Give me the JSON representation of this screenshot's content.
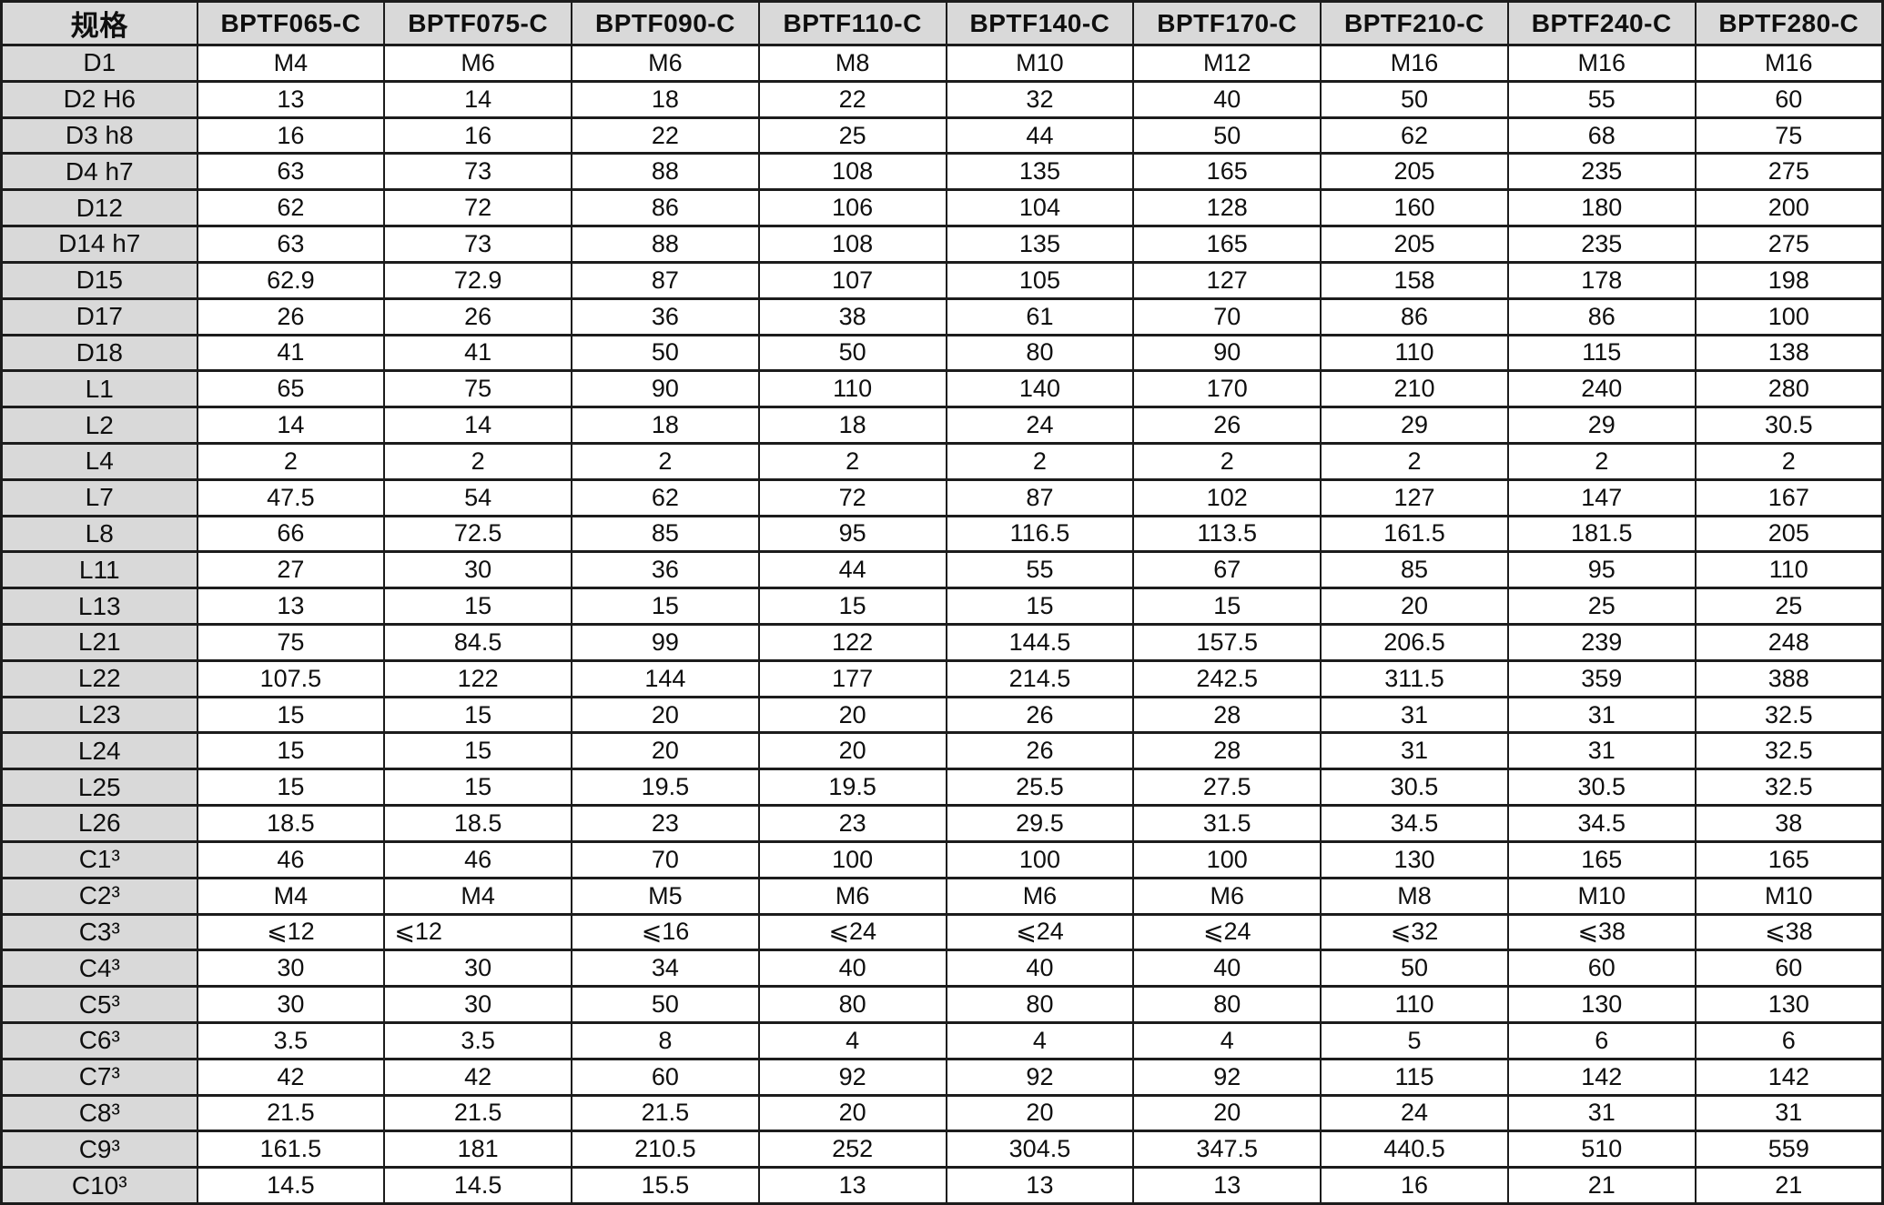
{
  "colors": {
    "border": "#1c1c1c",
    "header_background": "#d9d9d9",
    "row_label_background": "#d9d9d9",
    "cell_background": "#ffffff",
    "text": "#0f0f0f"
  },
  "table": {
    "corner_header": "规格",
    "columns": [
      "BPTF065-C",
      "BPTF075-C",
      "BPTF090-C",
      "BPTF110-C",
      "BPTF140-C",
      "BPTF170-C",
      "BPTF210-C",
      "BPTF240-C",
      "BPTF280-C"
    ],
    "rows": [
      {
        "label": "D1",
        "values": [
          "M4",
          "M6",
          "M6",
          "M8",
          "M10",
          "M12",
          "M16",
          "M16",
          "M16"
        ]
      },
      {
        "label": "D2 H6",
        "values": [
          "13",
          "14",
          "18",
          "22",
          "32",
          "40",
          "50",
          "55",
          "60"
        ]
      },
      {
        "label": "D3 h8",
        "values": [
          "16",
          "16",
          "22",
          "25",
          "44",
          "50",
          "62",
          "68",
          "75"
        ]
      },
      {
        "label": "D4 h7",
        "values": [
          "63",
          "73",
          "88",
          "108",
          "135",
          "165",
          "205",
          "235",
          "275"
        ]
      },
      {
        "label": "D12",
        "values": [
          "62",
          "72",
          "86",
          "106",
          "104",
          "128",
          "160",
          "180",
          "200"
        ]
      },
      {
        "label": "D14 h7",
        "values": [
          "63",
          "73",
          "88",
          "108",
          "135",
          "165",
          "205",
          "235",
          "275"
        ]
      },
      {
        "label": "D15",
        "values": [
          "62.9",
          "72.9",
          "87",
          "107",
          "105",
          "127",
          "158",
          "178",
          "198"
        ]
      },
      {
        "label": "D17",
        "values": [
          "26",
          "26",
          "36",
          "38",
          "61",
          "70",
          "86",
          "86",
          "100"
        ]
      },
      {
        "label": "D18",
        "values": [
          "41",
          "41",
          "50",
          "50",
          "80",
          "90",
          "110",
          "115",
          "138"
        ]
      },
      {
        "label": "L1",
        "values": [
          "65",
          "75",
          "90",
          "110",
          "140",
          "170",
          "210",
          "240",
          "280"
        ]
      },
      {
        "label": "L2",
        "values": [
          "14",
          "14",
          "18",
          "18",
          "24",
          "26",
          "29",
          "29",
          "30.5"
        ]
      },
      {
        "label": "L4",
        "values": [
          "2",
          "2",
          "2",
          "2",
          "2",
          "2",
          "2",
          "2",
          "2"
        ]
      },
      {
        "label": "L7",
        "values": [
          "47.5",
          "54",
          "62",
          "72",
          "87",
          "102",
          "127",
          "147",
          "167"
        ]
      },
      {
        "label": "L8",
        "values": [
          "66",
          "72.5",
          "85",
          "95",
          "116.5",
          "113.5",
          "161.5",
          "181.5",
          "205"
        ]
      },
      {
        "label": "L11",
        "values": [
          "27",
          "30",
          "36",
          "44",
          "55",
          "67",
          "85",
          "95",
          "110"
        ]
      },
      {
        "label": "L13",
        "values": [
          "13",
          "15",
          "15",
          "15",
          "15",
          "15",
          "20",
          "25",
          "25"
        ]
      },
      {
        "label": "L21",
        "values": [
          "75",
          "84.5",
          "99",
          "122",
          "144.5",
          "157.5",
          "206.5",
          "239",
          "248"
        ]
      },
      {
        "label": "L22",
        "values": [
          "107.5",
          "122",
          "144",
          "177",
          "214.5",
          "242.5",
          "311.5",
          "359",
          "388"
        ]
      },
      {
        "label": "L23",
        "values": [
          "15",
          "15",
          "20",
          "20",
          "26",
          "28",
          "31",
          "31",
          "32.5"
        ]
      },
      {
        "label": "L24",
        "values": [
          "15",
          "15",
          "20",
          "20",
          "26",
          "28",
          "31",
          "31",
          "32.5"
        ]
      },
      {
        "label": "L25",
        "values": [
          "15",
          "15",
          "19.5",
          "19.5",
          "25.5",
          "27.5",
          "30.5",
          "30.5",
          "32.5"
        ]
      },
      {
        "label": "L26",
        "values": [
          "18.5",
          "18.5",
          "23",
          "23",
          "29.5",
          "31.5",
          "34.5",
          "34.5",
          "38"
        ]
      },
      {
        "label": "C1³",
        "values": [
          "46",
          "46",
          "70",
          "100",
          "100",
          "100",
          "130",
          "165",
          "165"
        ]
      },
      {
        "label": "C2³",
        "values": [
          "M4",
          "M4",
          "M5",
          "M6",
          "M6",
          "M6",
          "M8",
          "M10",
          "M10"
        ]
      },
      {
        "label": "C3³",
        "values": [
          "⩽12",
          "⩽12",
          "⩽16",
          "⩽24",
          "⩽24",
          "⩽24",
          "⩽32",
          "⩽38",
          "⩽38"
        ]
      },
      {
        "label": "C4³",
        "values": [
          "30",
          "30",
          "34",
          "40",
          "40",
          "40",
          "50",
          "60",
          "60"
        ]
      },
      {
        "label": "C5³",
        "values": [
          "30",
          "30",
          "50",
          "80",
          "80",
          "80",
          "110",
          "130",
          "130"
        ]
      },
      {
        "label": "C6³",
        "values": [
          "3.5",
          "3.5",
          "8",
          "4",
          "4",
          "4",
          "5",
          "6",
          "6"
        ]
      },
      {
        "label": "C7³",
        "values": [
          "42",
          "42",
          "60",
          "92",
          "92",
          "92",
          "115",
          "142",
          "142"
        ]
      },
      {
        "label": "C8³",
        "values": [
          "21.5",
          "21.5",
          "21.5",
          "20",
          "20",
          "20",
          "24",
          "31",
          "31"
        ]
      },
      {
        "label": "C9³",
        "values": [
          "161.5",
          "181",
          "210.5",
          "252",
          "304.5",
          "347.5",
          "440.5",
          "510",
          "559"
        ]
      },
      {
        "label": "C10³",
        "values": [
          "14.5",
          "14.5",
          "15.5",
          "13",
          "13",
          "13",
          "16",
          "21",
          "21"
        ]
      }
    ],
    "left_aligned_cells": [
      [
        24,
        1
      ]
    ]
  }
}
